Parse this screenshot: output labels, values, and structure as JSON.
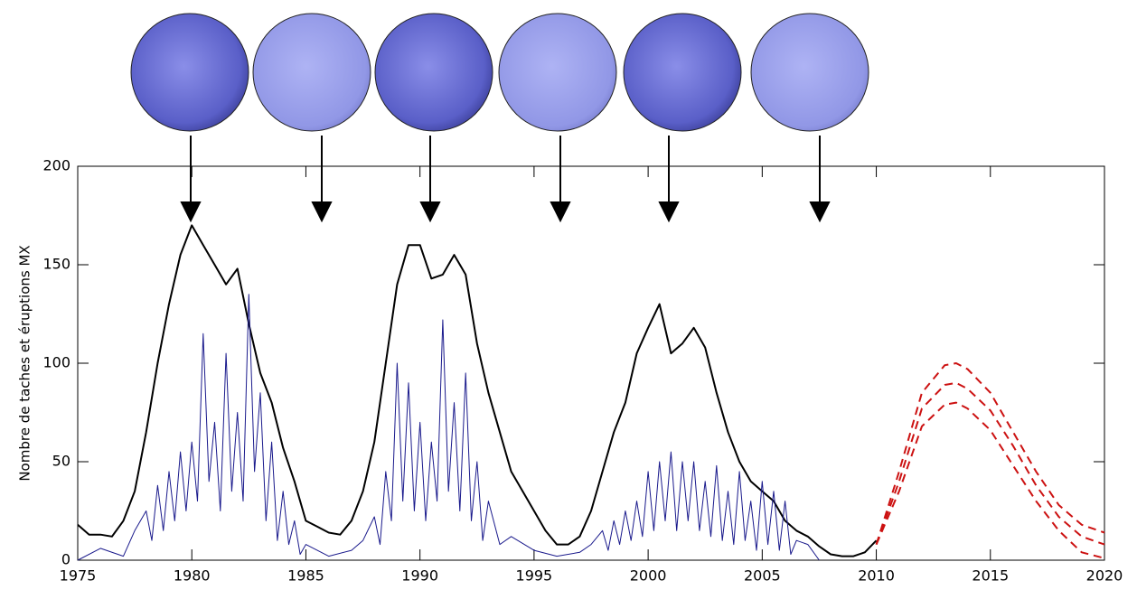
{
  "chart_data": {
    "type": "line",
    "ylabel": "Nombre de taches et éruptions MX",
    "xlim": [
      1975,
      2020
    ],
    "xticks": [
      1975,
      1980,
      1985,
      1990,
      1995,
      2000,
      2005,
      2010,
      2015,
      2020
    ],
    "ylim": [
      0,
      200
    ],
    "yticks": [
      0,
      50,
      100,
      150,
      200
    ],
    "series": [
      {
        "color": "#000000",
        "width": 2,
        "dashed": false,
        "x": [
          1975,
          1975.5,
          1976,
          1976.5,
          1977,
          1977.5,
          1978,
          1978.5,
          1979,
          1979.5,
          1980,
          1980.5,
          1981,
          1981.5,
          1982,
          1982.5,
          1983,
          1983.5,
          1984,
          1984.5,
          1985,
          1985.5,
          1986,
          1986.5,
          1987,
          1987.5,
          1988,
          1988.5,
          1989,
          1989.5,
          1990,
          1990.5,
          1991,
          1991.5,
          1992,
          1992.5,
          1993,
          1993.5,
          1994,
          1994.5,
          1995,
          1995.5,
          1996,
          1996.5,
          1997,
          1997.5,
          1998,
          1998.5,
          1999,
          1999.5,
          2000,
          2000.5,
          2001,
          2001.5,
          2002,
          2002.5,
          2003,
          2003.5,
          2004,
          2004.5,
          2005,
          2005.5,
          2006,
          2006.5,
          2007,
          2007.5,
          2008,
          2008.5,
          2009,
          2009.5,
          2010
        ],
        "values": [
          18,
          13,
          13,
          12,
          20,
          35,
          65,
          100,
          130,
          155,
          170,
          160,
          150,
          140,
          148,
          120,
          95,
          80,
          57,
          40,
          20,
          17,
          14,
          13,
          20,
          35,
          60,
          100,
          140,
          160,
          160,
          143,
          145,
          155,
          145,
          110,
          85,
          65,
          45,
          35,
          25,
          15,
          8,
          8,
          12,
          25,
          45,
          65,
          80,
          105,
          118,
          130,
          105,
          110,
          118,
          108,
          85,
          65,
          50,
          40,
          35,
          30,
          20,
          15,
          12,
          7,
          3,
          2,
          2,
          4,
          10
        ]
      },
      {
        "color": "#1a1a8c",
        "width": 1,
        "dashed": false,
        "x": [
          1975,
          1976,
          1977,
          1977.5,
          1978,
          1978.25,
          1978.5,
          1978.75,
          1979,
          1979.25,
          1979.5,
          1979.75,
          1980,
          1980.25,
          1980.5,
          1980.75,
          1981,
          1981.25,
          1981.5,
          1981.75,
          1982,
          1982.25,
          1982.5,
          1982.75,
          1983,
          1983.25,
          1983.5,
          1983.75,
          1984,
          1984.25,
          1984.5,
          1984.75,
          1985,
          1986,
          1987,
          1987.5,
          1988,
          1988.25,
          1988.5,
          1988.75,
          1989,
          1989.25,
          1989.5,
          1989.75,
          1990,
          1990.25,
          1990.5,
          1990.75,
          1991,
          1991.25,
          1991.5,
          1991.75,
          1992,
          1992.25,
          1992.5,
          1992.75,
          1993,
          1993.5,
          1994,
          1995,
          1996,
          1997,
          1997.5,
          1998,
          1998.25,
          1998.5,
          1998.75,
          1999,
          1999.25,
          1999.5,
          1999.75,
          2000,
          2000.25,
          2000.5,
          2000.75,
          2001,
          2001.25,
          2001.5,
          2001.75,
          2002,
          2002.25,
          2002.5,
          2002.75,
          2003,
          2003.25,
          2003.5,
          2003.75,
          2004,
          2004.25,
          2004.5,
          2004.75,
          2005,
          2005.25,
          2005.5,
          2005.75,
          2006,
          2006.25,
          2006.5,
          2007,
          2007.5
        ],
        "values": [
          0,
          6,
          2,
          15,
          25,
          10,
          38,
          15,
          45,
          20,
          55,
          25,
          60,
          30,
          115,
          40,
          70,
          25,
          105,
          35,
          75,
          30,
          135,
          45,
          85,
          20,
          60,
          10,
          35,
          8,
          20,
          3,
          8,
          2,
          5,
          10,
          22,
          8,
          45,
          20,
          100,
          30,
          90,
          25,
          70,
          20,
          60,
          30,
          122,
          35,
          80,
          25,
          95,
          20,
          50,
          10,
          30,
          8,
          12,
          5,
          2,
          4,
          8,
          15,
          5,
          20,
          8,
          25,
          10,
          30,
          12,
          45,
          15,
          50,
          20,
          55,
          15,
          50,
          20,
          50,
          15,
          40,
          12,
          48,
          10,
          35,
          8,
          45,
          10,
          30,
          5,
          40,
          8,
          35,
          5,
          30,
          3,
          10,
          8,
          0
        ]
      },
      {
        "color": "#cc1111",
        "width": 2,
        "dashed": true,
        "x": [
          2010,
          2011,
          2012,
          2013,
          2013.5,
          2014,
          2015,
          2016,
          2017,
          2018,
          2019,
          2020
        ],
        "values": [
          8,
          45,
          85,
          99,
          100,
          97,
          85,
          65,
          45,
          28,
          18,
          14
        ]
      },
      {
        "color": "#cc1111",
        "width": 2,
        "dashed": true,
        "x": [
          2010,
          2011,
          2012,
          2013,
          2013.5,
          2014,
          2015,
          2016,
          2017,
          2018,
          2019,
          2020
        ],
        "values": [
          8,
          40,
          77,
          89,
          90,
          87,
          76,
          58,
          38,
          22,
          12,
          8
        ]
      },
      {
        "color": "#cc1111",
        "width": 2,
        "dashed": true,
        "x": [
          2010,
          2011,
          2012,
          2013,
          2013.5,
          2014,
          2015,
          2016,
          2017,
          2018,
          2019,
          2020
        ],
        "values": [
          8,
          35,
          68,
          79,
          80,
          77,
          66,
          48,
          30,
          15,
          4,
          1
        ]
      }
    ]
  }
}
